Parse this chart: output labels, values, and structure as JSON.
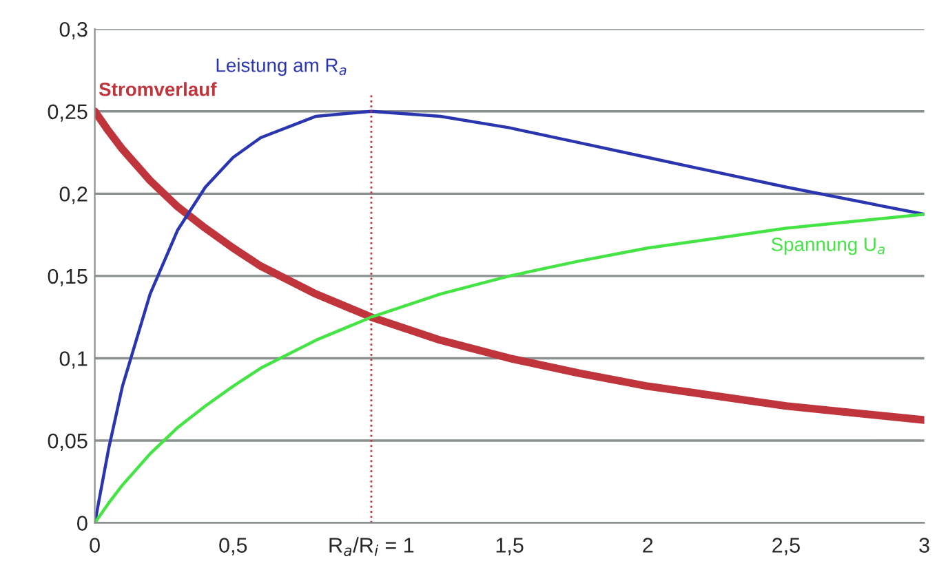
{
  "chart_data": {
    "type": "line",
    "x": [
      0,
      0.05,
      0.1,
      0.2,
      0.3,
      0.4,
      0.5,
      0.6,
      0.8,
      1,
      1.25,
      1.5,
      1.75,
      2,
      2.5,
      3
    ],
    "series": [
      {
        "name": "Stromverlauf",
        "color": "#c0343c",
        "values": [
          0.25,
          0.238,
          0.227,
          0.208,
          0.192,
          0.179,
          0.167,
          0.156,
          0.139,
          0.125,
          0.111,
          0.1,
          0.091,
          0.083,
          0.071,
          0.0625
        ]
      },
      {
        "name": "Leistung am R$_{a}$",
        "color": "#2a35b0",
        "values": [
          0,
          0.045,
          0.083,
          0.139,
          0.178,
          0.204,
          0.222,
          0.234,
          0.247,
          0.25,
          0.247,
          0.24,
          0.231,
          0.222,
          0.204,
          0.1875
        ]
      },
      {
        "name": "Spannung U$_{a}$",
        "color": "#44e444",
        "values": [
          0,
          0.012,
          0.023,
          0.042,
          0.058,
          0.071,
          0.083,
          0.094,
          0.111,
          0.125,
          0.139,
          0.15,
          0.159,
          0.167,
          0.179,
          0.1875
        ]
      }
    ],
    "xlim": [
      0,
      3
    ],
    "ylim": [
      0,
      0.3
    ],
    "xticks": [
      0,
      {
        "value": 0.5,
        "label": "0,5"
      },
      {
        "value": 1,
        "label": "R$_{a}$/R$_{i}$ = 1"
      },
      {
        "value": 1.5,
        "label": "1,5"
      },
      2,
      {
        "value": 2.5,
        "label": "2,5"
      },
      3
    ],
    "yticks": [
      0,
      {
        "value": 0.05,
        "label": "0,05"
      },
      {
        "value": 0.1,
        "label": "0,1"
      },
      {
        "value": 0.15,
        "label": "0,15"
      },
      {
        "value": 0.2,
        "label": "0,2"
      },
      {
        "value": 0.25,
        "label": "0,25"
      },
      {
        "value": 0.3,
        "label": "0,3"
      }
    ],
    "ref_lines": [
      {
        "axis": "x",
        "value": 1,
        "color": "#c0343c",
        "line_style": "dotted"
      }
    ],
    "grid": "y",
    "legend": false,
    "marker": "none",
    "line_style": "solid"
  }
}
